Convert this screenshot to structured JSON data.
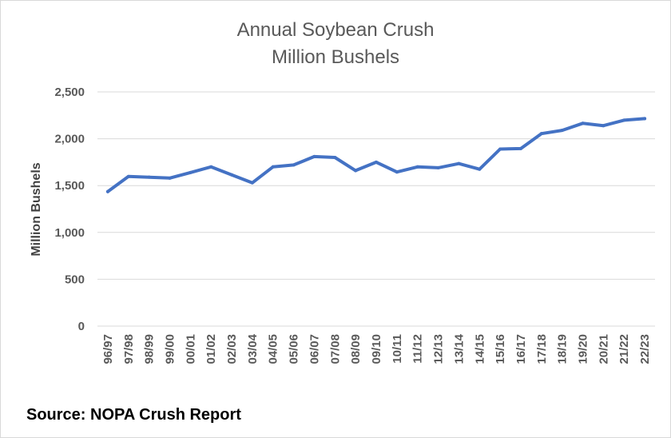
{
  "chart_data": {
    "type": "line",
    "title": [
      "Annual Soybean Crush",
      "Million Bushels"
    ],
    "ylabel": "Million Bushels",
    "ylim": [
      0,
      2500
    ],
    "yticks": [
      0,
      500,
      1000,
      1500,
      2000,
      2500
    ],
    "ytick_labels": [
      "0",
      "500",
      "1,000",
      "1,500",
      "2,000",
      "2,500"
    ],
    "grid": true,
    "categories": [
      "96/97",
      "97/98",
      "98/99",
      "99/00",
      "00/01",
      "01/02",
      "02/03",
      "03/04",
      "04/05",
      "05/06",
      "06/07",
      "07/08",
      "08/09",
      "09/10",
      "10/11",
      "11/12",
      "12/13",
      "13/14",
      "14/15",
      "15/16",
      "16/17",
      "17/18",
      "18/19",
      "19/20",
      "20/21",
      "21/22",
      "22/23"
    ],
    "series": [
      {
        "color": "#4472c4",
        "values": [
          1436,
          1597,
          1590,
          1580,
          1639,
          1700,
          1615,
          1530,
          1700,
          1720,
          1810,
          1800,
          1660,
          1750,
          1645,
          1700,
          1690,
          1735,
          1675,
          1890,
          1895,
          2055,
          2090,
          2165,
          2140,
          2198,
          2215
        ]
      }
    ]
  },
  "source": "Source: NOPA Crush Report"
}
